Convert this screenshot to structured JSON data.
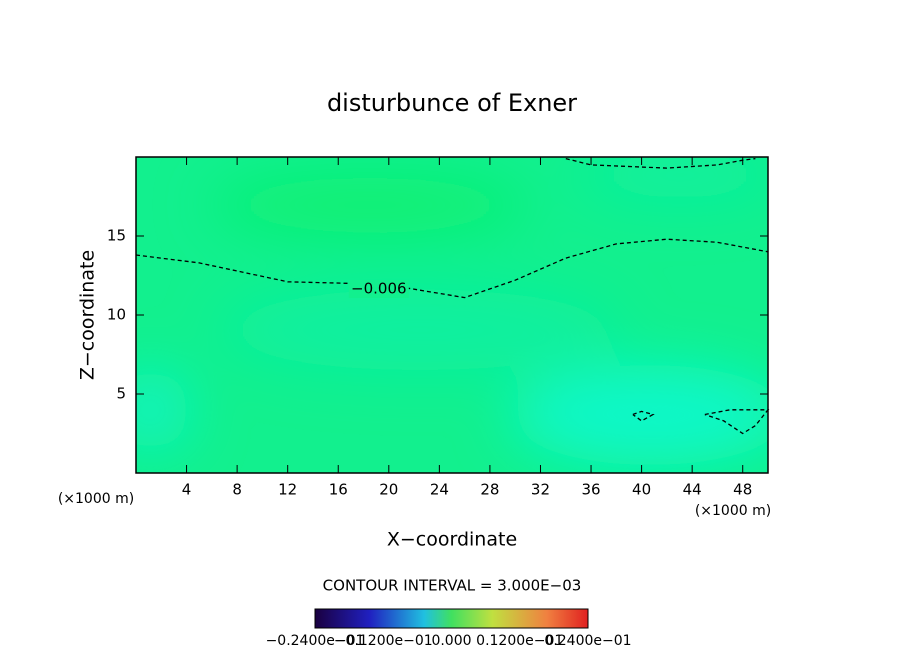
{
  "chart_data": {
    "type": "contour",
    "title": "disturbunce of Exner",
    "xlabel": "X−coordinate",
    "ylabel": "Z−coordinate",
    "xunit": "(×1000 m)",
    "yunit": "(×1000 m)",
    "xlim": [
      0,
      50
    ],
    "ylim": [
      0,
      20
    ],
    "xticks": [
      4,
      8,
      12,
      16,
      20,
      24,
      28,
      32,
      36,
      40,
      44,
      48
    ],
    "yticks": [
      5,
      10,
      15
    ],
    "contours": [
      {
        "label": "−0.006",
        "color": "#000000",
        "x": [
          0,
          5,
          12,
          17,
          20,
          23,
          26,
          30,
          34,
          38,
          42,
          46,
          50
        ],
        "y": [
          13.8,
          13.3,
          12.1,
          12.0,
          11.9,
          11.5,
          11.1,
          12.2,
          13.6,
          14.5,
          14.8,
          14.6,
          14.0
        ]
      },
      {
        "color": "#000000",
        "x": [
          34,
          36,
          42,
          46,
          48,
          49
        ],
        "y": [
          19.9,
          19.5,
          19.3,
          19.5,
          19.8,
          19.9
        ]
      },
      {
        "color": "#000000",
        "x": [
          39.3,
          40,
          40.9,
          40,
          39.3
        ],
        "y": [
          3.7,
          3.9,
          3.7,
          3.3,
          3.7
        ]
      },
      {
        "color": "#000000",
        "x": [
          45,
          47,
          50,
          49,
          48,
          46.5,
          45
        ],
        "y": [
          3.7,
          4.0,
          4.0,
          3.0,
          2.5,
          3.3,
          3.7
        ]
      }
    ],
    "contour_interval": "CONTOUR INTERVAL = 3.000E−03",
    "colorbar_labels": [
      "−0.2400e−01",
      "−0.1200e−01",
      "0.000",
      "0.1200e−01",
      "0.2400e−01"
    ]
  }
}
